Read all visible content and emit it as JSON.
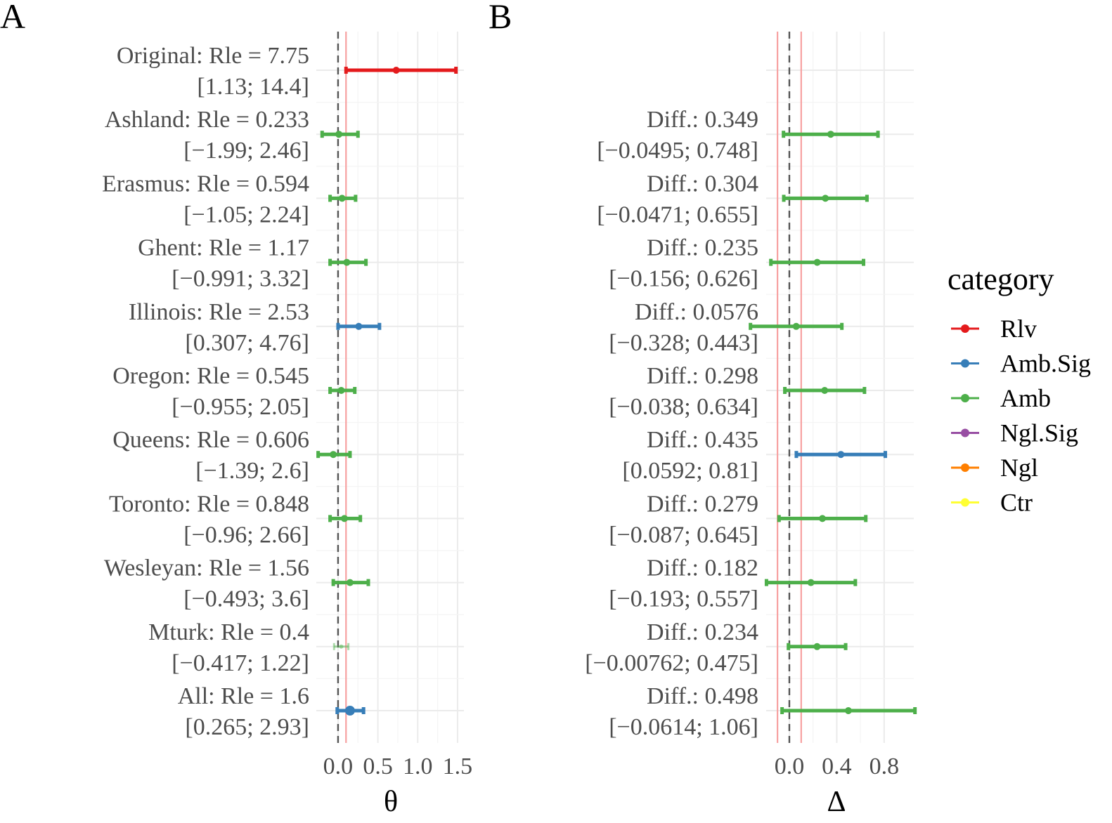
{
  "panels": [
    {
      "letter": "A",
      "xlabel": "θ",
      "xticks": [
        0.0,
        0.5,
        1.0,
        1.5
      ],
      "xtick_labels": [
        "0.0",
        "0.5",
        "1.0",
        "1.5"
      ],
      "xlim": [
        -0.22,
        1.58
      ],
      "ref_lines": {
        "dashed": 0.0,
        "red": 0.1
      },
      "rows": [
        {
          "line1": "Original: Rle = 7.75",
          "line2": "[1.13; 14.4]",
          "est": 0.73,
          "lo": 0.1,
          "hi": 1.48,
          "category": "Rlv"
        },
        {
          "line1": "Ashland: Rle = 0.233",
          "line2": "[−1.99; 2.46]",
          "est": 0.01,
          "lo": -0.2,
          "hi": 0.25,
          "category": "Amb"
        },
        {
          "line1": "Erasmus: Rle = 0.594",
          "line2": "[−1.05; 2.24]",
          "est": 0.05,
          "lo": -0.1,
          "hi": 0.22,
          "category": "Amb"
        },
        {
          "line1": "Ghent: Rle = 1.17",
          "line2": "[−0.991; 3.32]",
          "est": 0.11,
          "lo": -0.1,
          "hi": 0.35,
          "category": "Amb"
        },
        {
          "line1": "Illinois: Rle = 2.53",
          "line2": "[0.307; 4.76]",
          "est": 0.26,
          "lo": 0.0,
          "hi": 0.52,
          "category": "Amb.Sig"
        },
        {
          "line1": "Oregon: Rle = 0.545",
          "line2": "[−0.955; 2.05]",
          "est": 0.04,
          "lo": -0.1,
          "hi": 0.21,
          "category": "Amb"
        },
        {
          "line1": "Queens: Rle = 0.606",
          "line2": "[−1.39; 2.6]",
          "est": -0.06,
          "lo": -0.25,
          "hi": 0.15,
          "category": "Amb"
        },
        {
          "line1": "Toronto: Rle = 0.848",
          "line2": "[−0.96; 2.66]",
          "est": 0.08,
          "lo": -0.1,
          "hi": 0.28,
          "category": "Amb"
        },
        {
          "line1": "Wesleyan: Rle = 1.56",
          "line2": "[−0.493; 3.6]",
          "est": 0.15,
          "lo": -0.06,
          "hi": 0.38,
          "category": "Amb"
        },
        {
          "line1": "Mturk: Rle = 0.4",
          "line2": "[−0.417; 1.22]",
          "est": 0.04,
          "lo": -0.05,
          "hi": 0.13,
          "category": "Amb",
          "faded": true
        },
        {
          "line1": "All: Rle = 1.6",
          "line2": "[0.265; 2.93]",
          "est": 0.15,
          "lo": -0.01,
          "hi": 0.32,
          "category": "Amb.Sig",
          "bold_point": true
        }
      ]
    },
    {
      "letter": "B",
      "xlabel": "Δ",
      "xticks": [
        0.0,
        0.4,
        0.8
      ],
      "xtick_labels": [
        "0.0",
        "0.4",
        "0.8"
      ],
      "xlim": [
        -0.16,
        1.05
      ],
      "ref_lines": {
        "dashed": 0.0,
        "red": [
          -0.1,
          0.1
        ]
      },
      "rows": [
        {
          "line1": "",
          "line2": "",
          "est": null,
          "lo": null,
          "hi": null,
          "category": null
        },
        {
          "line1": "Diff.: 0.349",
          "line2": "[−0.0495; 0.748]",
          "est": 0.349,
          "lo": -0.0495,
          "hi": 0.748,
          "category": "Amb"
        },
        {
          "line1": "Diff.: 0.304",
          "line2": "[−0.0471; 0.655]",
          "est": 0.304,
          "lo": -0.0471,
          "hi": 0.655,
          "category": "Amb"
        },
        {
          "line1": "Diff.: 0.235",
          "line2": "[−0.156; 0.626]",
          "est": 0.235,
          "lo": -0.156,
          "hi": 0.626,
          "category": "Amb"
        },
        {
          "line1": "Diff.: 0.0576",
          "line2": "[−0.328; 0.443]",
          "est": 0.0576,
          "lo": -0.328,
          "hi": 0.443,
          "category": "Amb"
        },
        {
          "line1": "Diff.: 0.298",
          "line2": "[−0.038; 0.634]",
          "est": 0.298,
          "lo": -0.038,
          "hi": 0.634,
          "category": "Amb"
        },
        {
          "line1": "Diff.: 0.435",
          "line2": "[0.0592; 0.81]",
          "est": 0.435,
          "lo": 0.0592,
          "hi": 0.81,
          "category": "Amb.Sig"
        },
        {
          "line1": "Diff.: 0.279",
          "line2": "[−0.087; 0.645]",
          "est": 0.279,
          "lo": -0.087,
          "hi": 0.645,
          "category": "Amb"
        },
        {
          "line1": "Diff.: 0.182",
          "line2": "[−0.193; 0.557]",
          "est": 0.182,
          "lo": -0.193,
          "hi": 0.557,
          "category": "Amb"
        },
        {
          "line1": "Diff.: 0.234",
          "line2": "[−0.00762; 0.475]",
          "est": 0.234,
          "lo": -0.00762,
          "hi": 0.475,
          "category": "Amb"
        },
        {
          "line1": "Diff.: 0.498",
          "line2": "[−0.0614; 1.06]",
          "est": 0.498,
          "lo": -0.0614,
          "hi": 1.06,
          "category": "Amb"
        }
      ]
    }
  ],
  "legend": {
    "title": "category",
    "position": "right",
    "items": [
      {
        "label": "Rlv",
        "color": "#e41a1c"
      },
      {
        "label": "Amb.Sig",
        "color": "#377eb8"
      },
      {
        "label": "Amb",
        "color": "#4daf4a"
      },
      {
        "label": "Ngl.Sig",
        "color": "#984ea3"
      },
      {
        "label": "Ngl",
        "color": "#ff7f00"
      },
      {
        "label": "Ctr",
        "color": "#ffff33"
      }
    ]
  },
  "chart_data": [
    {
      "type": "forest",
      "panel": "A",
      "xlabel": "θ",
      "xlim": [
        -0.22,
        1.58
      ],
      "grid": true,
      "categories": [
        "Original",
        "Ashland",
        "Erasmus",
        "Ghent",
        "Illinois",
        "Oregon",
        "Queens",
        "Toronto",
        "Wesleyan",
        "Mturk",
        "All"
      ],
      "estimates": [
        0.73,
        0.01,
        0.05,
        0.11,
        0.26,
        0.04,
        -0.06,
        0.08,
        0.15,
        0.04,
        0.15
      ],
      "lower": [
        0.1,
        -0.2,
        -0.1,
        -0.1,
        0.0,
        -0.1,
        -0.25,
        -0.1,
        -0.06,
        -0.05,
        -0.01
      ],
      "upper": [
        1.48,
        0.25,
        0.22,
        0.35,
        0.52,
        0.21,
        0.15,
        0.28,
        0.38,
        0.13,
        0.32
      ]
    },
    {
      "type": "forest",
      "panel": "B",
      "xlabel": "Δ",
      "xlim": [
        -0.16,
        1.05
      ],
      "grid": true,
      "categories": [
        "Ashland",
        "Erasmus",
        "Ghent",
        "Illinois",
        "Oregon",
        "Queens",
        "Toronto",
        "Wesleyan",
        "Mturk",
        "All"
      ],
      "estimates": [
        0.349,
        0.304,
        0.235,
        0.0576,
        0.298,
        0.435,
        0.279,
        0.182,
        0.234,
        0.498
      ],
      "lower": [
        -0.0495,
        -0.0471,
        -0.156,
        -0.328,
        -0.038,
        0.0592,
        -0.087,
        -0.193,
        -0.00762,
        -0.0614
      ],
      "upper": [
        0.748,
        0.655,
        0.626,
        0.443,
        0.634,
        0.81,
        0.645,
        0.557,
        0.475,
        1.06
      ]
    }
  ]
}
